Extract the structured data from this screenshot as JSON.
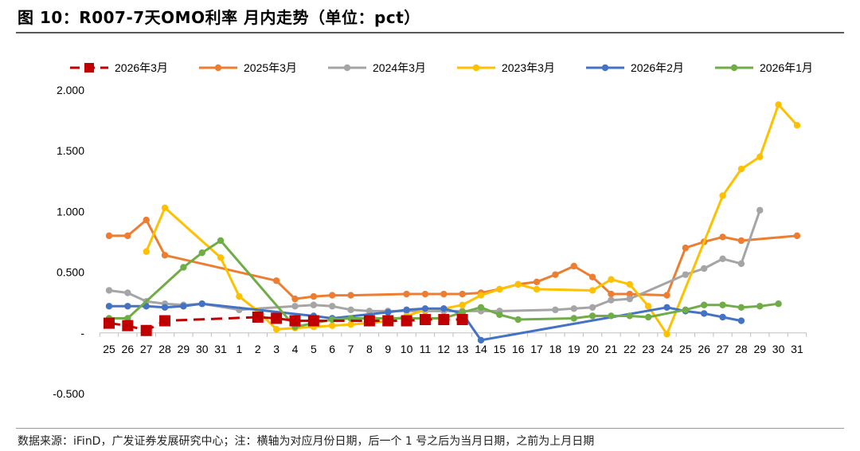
{
  "title": "图 10：R007-7天OMO利率 月内走势（单位：pct）",
  "source": "数据来源：iFinD，广发证券发展研究中心；注：横轴为对应月份日期，后一个 1 号之后为当月日期，之前为上月日期",
  "chart_data": {
    "type": "line",
    "categories": [
      "25",
      "26",
      "27",
      "28",
      "29",
      "30",
      "31",
      "1",
      "2",
      "3",
      "4",
      "5",
      "6",
      "7",
      "8",
      "9",
      "10",
      "11",
      "12",
      "13",
      "14",
      "15",
      "16",
      "17",
      "18",
      "19",
      "20",
      "21",
      "22",
      "23",
      "24",
      "25",
      "26",
      "27",
      "28",
      "29",
      "30",
      "31"
    ],
    "yticks": [
      "2.000",
      "1.500",
      "1.000",
      "0.500",
      "-",
      "-0.500"
    ],
    "ylim": [
      -0.5,
      2.0
    ],
    "series": [
      {
        "name": "2025年3月",
        "color": "#ED7D31",
        "marker": "circle",
        "dashed": false,
        "values": [
          0.8,
          0.8,
          0.93,
          0.64,
          null,
          null,
          null,
          null,
          null,
          0.43,
          0.28,
          0.3,
          0.31,
          0.31,
          null,
          null,
          0.32,
          0.32,
          0.32,
          0.32,
          0.33,
          0.36,
          0.4,
          0.42,
          0.48,
          0.55,
          0.46,
          0.32,
          0.32,
          null,
          0.31,
          0.7,
          0.75,
          0.79,
          0.76,
          null,
          null,
          0.8
        ]
      },
      {
        "name": "2024年3月",
        "color": "#A5A5A5",
        "marker": "circle",
        "dashed": false,
        "values": [
          0.35,
          0.33,
          0.26,
          0.24,
          0.23,
          0.24,
          null,
          0.19,
          null,
          null,
          0.22,
          0.23,
          0.22,
          0.19,
          0.18,
          0.18,
          0.18,
          0.18,
          0.18,
          0.18,
          0.18,
          0.18,
          null,
          null,
          0.19,
          0.2,
          0.21,
          0.27,
          0.28,
          null,
          null,
          0.48,
          0.53,
          0.61,
          0.57,
          1.01,
          null,
          null
        ]
      },
      {
        "name": "2023年3月",
        "color": "#FFC000",
        "marker": "circle",
        "dashed": false,
        "values": [
          null,
          null,
          0.67,
          1.03,
          null,
          null,
          0.62,
          0.3,
          0.18,
          0.03,
          0.04,
          0.05,
          0.06,
          0.07,
          0.08,
          0.1,
          0.14,
          0.19,
          0.2,
          0.23,
          0.31,
          0.36,
          0.4,
          0.36,
          null,
          null,
          0.35,
          0.44,
          0.4,
          0.22,
          -0.01,
          null,
          null,
          1.13,
          1.35,
          1.45,
          1.88,
          1.71
        ]
      },
      {
        "name": "2026年2月",
        "color": "#4472C4",
        "marker": "circle",
        "dashed": false,
        "values": [
          0.22,
          0.22,
          0.22,
          0.21,
          0.22,
          0.24,
          null,
          null,
          null,
          null,
          null,
          0.14,
          0.12,
          null,
          null,
          0.17,
          0.19,
          0.2,
          0.2,
          0.16,
          -0.06,
          null,
          null,
          null,
          null,
          null,
          null,
          null,
          null,
          null,
          0.21,
          0.18,
          0.16,
          0.13,
          0.1,
          null,
          null,
          null
        ]
      },
      {
        "name": "2026年1月",
        "color": "#70AD47",
        "marker": "circle",
        "dashed": false,
        "values": [
          0.12,
          0.12,
          null,
          null,
          0.54,
          0.66,
          0.76,
          null,
          null,
          null,
          0.05,
          0.08,
          0.11,
          0.12,
          0.12,
          0.12,
          0.12,
          0.12,
          0.12,
          0.17,
          0.21,
          0.15,
          0.11,
          null,
          null,
          0.12,
          0.14,
          0.14,
          0.14,
          0.13,
          null,
          0.19,
          0.23,
          0.23,
          0.21,
          0.22,
          0.24,
          null
        ]
      },
      {
        "name": "2026年3月",
        "color": "#C00000",
        "marker": "square",
        "dashed": true,
        "values": [
          0.08,
          0.06,
          0.02,
          0.1,
          null,
          null,
          null,
          null,
          0.13,
          0.12,
          0.1,
          0.1,
          null,
          null,
          0.1,
          0.1,
          0.1,
          0.11,
          0.11,
          0.11,
          null,
          null,
          null,
          null,
          null,
          null,
          null,
          null,
          null,
          null,
          null,
          null,
          null,
          null,
          null,
          null,
          null,
          null
        ]
      }
    ],
    "legend_order": [
      "2026年3月",
      "2025年3月",
      "2024年3月",
      "2023年3月",
      "2026年2月",
      "2026年1月"
    ],
    "grid": false,
    "legend_position": "top"
  }
}
